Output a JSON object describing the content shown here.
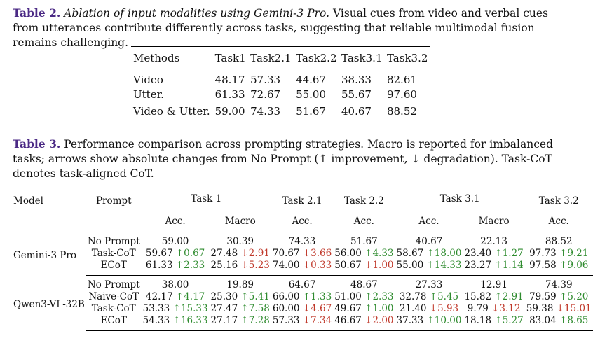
{
  "table2": {
    "label": "Table 2.",
    "title": "Ablation of input modalities using Gemini-3 Pro.",
    "caption": "Visual cues from video and verbal cues from utterances contribute differently across tasks, suggesting that reliable multimodal fusion remains challenging.",
    "columns": [
      "Methods",
      "Task1",
      "Task2.1",
      "Task2.2",
      "Task3.1",
      "Task3.2"
    ],
    "rows": [
      [
        "Video",
        "48.17",
        "57.33",
        "44.67",
        "38.33",
        "82.61"
      ],
      [
        "Utter.",
        "61.33",
        "72.67",
        "55.00",
        "55.67",
        "97.60"
      ],
      [
        "Video & Utter.",
        "59.00",
        "74.33",
        "51.67",
        "40.67",
        "88.52"
      ]
    ]
  },
  "table3": {
    "label": "Table 3.",
    "caption": "Performance comparison across prompting strategies. Macro is reported for imbalanced tasks; arrows show absolute changes from No Prompt (↑ improvement, ↓ degradation). Task-CoT denotes task-aligned CoT.",
    "header_top": {
      "model": "Model",
      "prompt": "Prompt",
      "task1": "Task 1",
      "task21": "Task 2.1",
      "task22": "Task 2.2",
      "task31": "Task 3.1",
      "task32": "Task 3.2"
    },
    "header_sub": [
      "Acc.",
      "Macro",
      "Acc.",
      "Acc.",
      "Acc.",
      "Macro",
      "Acc."
    ],
    "groups": [
      {
        "model": "Gemini-3 Pro",
        "rows": [
          {
            "prompt": "No Prompt",
            "cells": [
              [
                "59.00",
                ""
              ],
              [
                "30.39",
                ""
              ],
              [
                "74.33",
                ""
              ],
              [
                "51.67",
                ""
              ],
              [
                "40.67",
                ""
              ],
              [
                "22.13",
                ""
              ],
              [
                "88.52",
                ""
              ]
            ]
          },
          {
            "prompt": "Task-CoT",
            "cells": [
              [
                "59.67",
                "↑0.67"
              ],
              [
                "27.48",
                "↓2.91"
              ],
              [
                "70.67",
                "↓3.66"
              ],
              [
                "56.00",
                "↑4.33"
              ],
              [
                "58.67",
                "↑18.00"
              ],
              [
                "23.40",
                "↑1.27"
              ],
              [
                "97.73",
                "↑9.21"
              ]
            ]
          },
          {
            "prompt": "ECoT",
            "cells": [
              [
                "61.33",
                "↑2.33"
              ],
              [
                "25.16",
                "↓5.23"
              ],
              [
                "74.00",
                "↓0.33"
              ],
              [
                "50.67",
                "↓1.00"
              ],
              [
                "55.00",
                "↑14.33"
              ],
              [
                "23.27",
                "↑1.14"
              ],
              [
                "97.58",
                "↑9.06"
              ]
            ]
          }
        ]
      },
      {
        "model": "Qwen3-VL-32B",
        "rows": [
          {
            "prompt": "No Prompt",
            "cells": [
              [
                "38.00",
                ""
              ],
              [
                "19.89",
                ""
              ],
              [
                "64.67",
                ""
              ],
              [
                "48.67",
                ""
              ],
              [
                "27.33",
                ""
              ],
              [
                "12.91",
                ""
              ],
              [
                "74.39",
                ""
              ]
            ]
          },
          {
            "prompt": "Naive-CoT",
            "cells": [
              [
                "42.17",
                "↑4.17"
              ],
              [
                "25.30",
                "↑5.41"
              ],
              [
                "66.00",
                "↑1.33"
              ],
              [
                "51.00",
                "↑2.33"
              ],
              [
                "32.78",
                "↑5.45"
              ],
              [
                "15.82",
                "↑2.91"
              ],
              [
                "79.59",
                "↑5.20"
              ]
            ]
          },
          {
            "prompt": "Task-CoT",
            "cells": [
              [
                "53.33",
                "↑15.33"
              ],
              [
                "27.47",
                "↑7.58"
              ],
              [
                "60.00",
                "↓4.67"
              ],
              [
                "49.67",
                "↑1.00"
              ],
              [
                "21.40",
                "↓5.93"
              ],
              [
                "9.79",
                "↓3.12"
              ],
              [
                "59.38",
                "↓15.01"
              ]
            ]
          },
          {
            "prompt": "ECoT",
            "cells": [
              [
                "54.33",
                "↑16.33"
              ],
              [
                "27.17",
                "↑7.28"
              ],
              [
                "57.33",
                "↓7.34"
              ],
              [
                "46.67",
                "↓2.00"
              ],
              [
                "37.33",
                "↑10.00"
              ],
              [
                "18.18",
                "↑5.27"
              ],
              [
                "83.04",
                "↑8.65"
              ]
            ]
          }
        ]
      }
    ]
  }
}
